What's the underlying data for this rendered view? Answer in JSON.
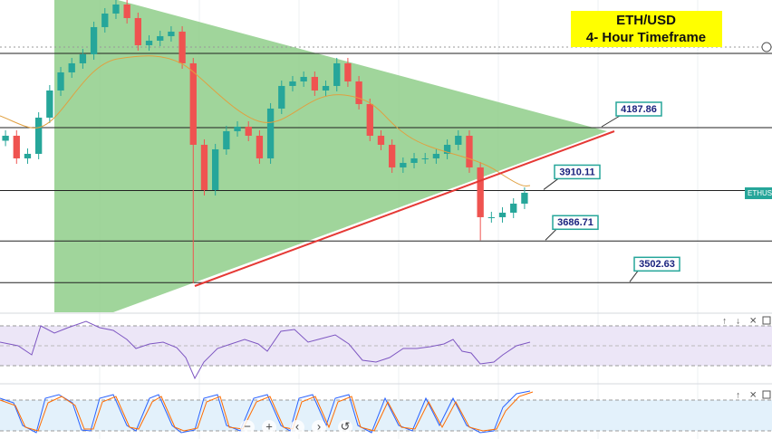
{
  "chart_data": {
    "type": "candlestick",
    "title": [
      "ETH/USD",
      "4- Hour Timeframe"
    ],
    "symbol": "ETHUSD",
    "ylim": [
      3371.86,
      4751.86
    ],
    "open": [
      4130,
      4152,
      4052,
      4072,
      4232,
      4352,
      4432,
      4472,
      4512,
      4632,
      4692,
      4732,
      4672,
      4552,
      4572,
      4592,
      4612,
      4472,
      4112,
      3912,
      4092,
      4172,
      4192,
      4152,
      4052,
      4272,
      4372,
      4392,
      4412,
      4352,
      4372,
      4472,
      4392,
      4292,
      4152,
      4112,
      4012,
      4032,
      4052,
      4052,
      4072,
      4112,
      4152,
      4012,
      3792,
      3792,
      3812,
      3852
    ],
    "high": [
      4176,
      4176,
      4096,
      4256,
      4376,
      4456,
      4496,
      4536,
      4656,
      4716,
      4756,
      4756,
      4696,
      4596,
      4616,
      4636,
      4636,
      4496,
      4136,
      4116,
      4196,
      4216,
      4216,
      4176,
      4296,
      4396,
      4416,
      4436,
      4436,
      4396,
      4496,
      4496,
      4416,
      4316,
      4176,
      4136,
      4056,
      4076,
      4076,
      4096,
      4136,
      4176,
      4176,
      4036,
      3816,
      3836,
      3876,
      3924
    ],
    "low": [
      4106,
      4028,
      4028,
      4048,
      4208,
      4328,
      4408,
      4448,
      4488,
      4608,
      4668,
      4648,
      4528,
      4528,
      4548,
      4568,
      4448,
      3500,
      3888,
      3888,
      4068,
      4148,
      4128,
      4028,
      4028,
      4248,
      4348,
      4368,
      4328,
      4328,
      4348,
      4368,
      4268,
      4128,
      4088,
      3988,
      3988,
      4008,
      4028,
      4028,
      4048,
      4088,
      3988,
      3690,
      3768,
      3768,
      3788,
      3828
    ],
    "close": [
      4152,
      4052,
      4072,
      4232,
      4352,
      4432,
      4472,
      4512,
      4632,
      4692,
      4732,
      4672,
      4552,
      4572,
      4592,
      4612,
      4472,
      4112,
      3912,
      4092,
      4172,
      4192,
      4152,
      4052,
      4272,
      4372,
      4392,
      4412,
      4352,
      4372,
      4472,
      4392,
      4292,
      4152,
      4112,
      4012,
      4032,
      4052,
      4052,
      4072,
      4112,
      4152,
      4012,
      3792,
      3792,
      3812,
      3852,
      3900
    ],
    "up_color": "#26a69a",
    "down_color": "#ef5350",
    "levels": [
      4187.86,
      3910.11,
      3686.71,
      3502.63
    ],
    "hlines": [
      4516
    ]
  }
}
